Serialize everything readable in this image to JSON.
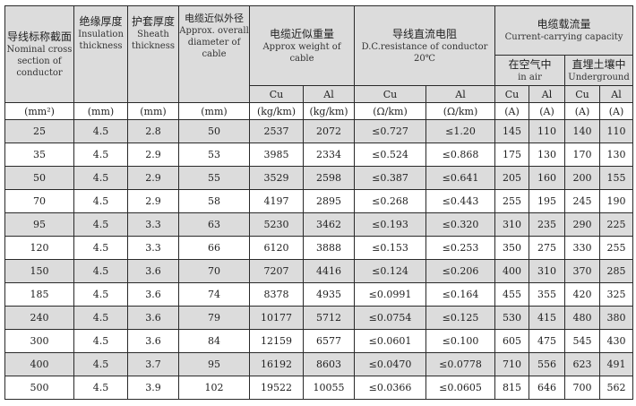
{
  "headers": {
    "section": {
      "cn": "导线标称截面",
      "en": "Nominal cross section of conductor",
      "unit": "(mm²)"
    },
    "insulation": {
      "cn": "绝缘厚度",
      "en": "Insulation thickness",
      "unit": "(mm)"
    },
    "sheath": {
      "cn": "护套厚度",
      "en": "Sheath thickness",
      "unit": "(mm)"
    },
    "diameter": {
      "cn": "电缆近似外径",
      "en": "Approx. overall diameter of cable",
      "unit": "(mm)"
    },
    "weight": {
      "cn": "电缆近似重量",
      "en": "Approx weight of cable",
      "cu": "Cu",
      "al": "Al",
      "unit": "(kg/km)"
    },
    "resistance": {
      "cn": "导线直流电阻",
      "en": "D.C.resistance of conductor 20℃",
      "cu": "Cu",
      "al": "Al",
      "unit": "(Ω/km)"
    },
    "current": {
      "cn": "电缆载流量",
      "en": "Current-carrying capacity",
      "air": {
        "cn": "在空气中",
        "en": "in air"
      },
      "ground": {
        "cn": "直埋土壤中",
        "en": "Underground"
      },
      "cu": "Cu",
      "al": "Al",
      "unit": "(A)"
    }
  },
  "rows": [
    [
      "25",
      "4.5",
      "2.8",
      "50",
      "2537",
      "2072",
      "≤0.727",
      "≤1.20",
      "145",
      "110",
      "140",
      "110"
    ],
    [
      "35",
      "4.5",
      "2.9",
      "53",
      "3985",
      "2334",
      "≤0.524",
      "≤0.868",
      "175",
      "130",
      "170",
      "130"
    ],
    [
      "50",
      "4.5",
      "2.9",
      "55",
      "3529",
      "2598",
      "≤0.387",
      "≤0.641",
      "205",
      "160",
      "200",
      "155"
    ],
    [
      "70",
      "4.5",
      "2.9",
      "58",
      "4197",
      "2895",
      "≤0.268",
      "≤0.443",
      "255",
      "195",
      "245",
      "190"
    ],
    [
      "95",
      "4.5",
      "3.3",
      "63",
      "5230",
      "3462",
      "≤0.193",
      "≤0.320",
      "310",
      "235",
      "290",
      "225"
    ],
    [
      "120",
      "4.5",
      "3.3",
      "66",
      "6120",
      "3888",
      "≤0.153",
      "≤0.253",
      "350",
      "275",
      "330",
      "255"
    ],
    [
      "150",
      "4.5",
      "3.6",
      "70",
      "7207",
      "4416",
      "≤0.124",
      "≤0.206",
      "400",
      "310",
      "370",
      "285"
    ],
    [
      "185",
      "4.5",
      "3.6",
      "74",
      "8378",
      "4935",
      "≤0.0991",
      "≤0.164",
      "455",
      "355",
      "420",
      "325"
    ],
    [
      "240",
      "4.5",
      "3.6",
      "79",
      "10177",
      "5712",
      "≤0.0754",
      "≤0.125",
      "530",
      "415",
      "480",
      "380"
    ],
    [
      "300",
      "4.5",
      "3.6",
      "84",
      "12159",
      "6577",
      "≤0.0601",
      "≤0.100",
      "605",
      "475",
      "545",
      "430"
    ],
    [
      "400",
      "4.5",
      "3.7",
      "95",
      "16192",
      "8603",
      "≤0.0470",
      "≤0.0778",
      "710",
      "556",
      "623",
      "491"
    ],
    [
      "500",
      "4.5",
      "3.9",
      "102",
      "19522",
      "10055",
      "≤0.0366",
      "≤0.0605",
      "815",
      "646",
      "700",
      "562"
    ]
  ]
}
